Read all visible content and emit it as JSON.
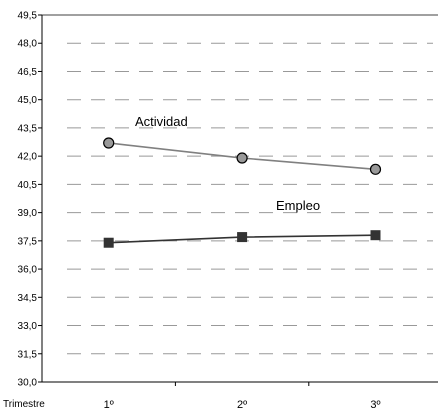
{
  "chart_data": {
    "type": "line",
    "xlabel": "Trimestre",
    "categories": [
      "1º",
      "2º",
      "3º"
    ],
    "ylim": [
      30.0,
      49.5
    ],
    "yticks": [
      "30,0",
      "31,5",
      "33,0",
      "34,5",
      "36,0",
      "37,5",
      "39,0",
      "40,5",
      "42,0",
      "43,5",
      "45,0",
      "46,5",
      "48,0",
      "49,5"
    ],
    "grid": true,
    "series": [
      {
        "name": "Actividad",
        "values": [
          42.7,
          41.9,
          41.3
        ],
        "color": "#808080",
        "marker": "circle"
      },
      {
        "name": "Empleo",
        "values": [
          37.4,
          37.7,
          37.8
        ],
        "color": "#333333",
        "marker": "square"
      }
    ]
  }
}
